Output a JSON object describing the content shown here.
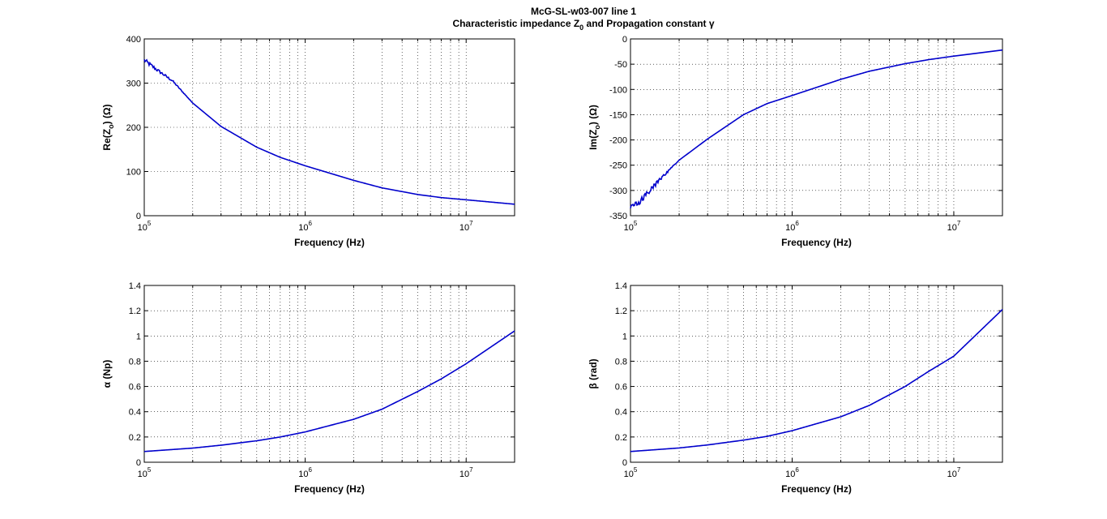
{
  "figure": {
    "title_line1": "McG-SL-w03-007 line 1",
    "title_line2_prefix": "Characteristic impedance Z",
    "title_line2_sub": "0",
    "title_line2_suffix": " and Propagation constant γ"
  },
  "colors": {
    "series": "#0000cc",
    "axes": "#000000",
    "background": "#ffffff"
  },
  "chart_data": [
    {
      "type": "line",
      "title": "",
      "xlabel": "Frequency (Hz)",
      "ylabel": {
        "prefix": "Re(Z",
        "sub": "o",
        "suffix": ") (Ω)"
      },
      "xscale": "log",
      "xlim": [
        100000,
        20000000
      ],
      "ylim": [
        0,
        400
      ],
      "yticks": [
        0,
        100,
        200,
        300,
        400
      ],
      "ytick_labels": [
        "0",
        "100",
        "200",
        "300",
        "400"
      ],
      "xticks": [
        {
          "base": "10",
          "exp": "5",
          "value": 100000
        },
        {
          "base": "10",
          "exp": "6",
          "value": 1000000
        },
        {
          "base": "10",
          "exp": "7",
          "value": 10000000
        }
      ],
      "grid": true,
      "noisy_until": 200000,
      "noise_amplitude": 5,
      "series": [
        {
          "x": [
            100000,
            120000,
            150000,
            200000,
            300000,
            500000,
            700000,
            1000000,
            2000000,
            3000000,
            5000000,
            7000000,
            10000000,
            20000000
          ],
          "y": [
            352,
            330,
            305,
            255,
            202,
            155,
            132,
            113,
            80,
            63,
            48,
            41,
            36,
            26
          ]
        }
      ]
    },
    {
      "type": "line",
      "title": "",
      "xlabel": "Frequency (Hz)",
      "ylabel": {
        "prefix": "Im(Z",
        "sub": "o",
        "suffix": ") (Ω)"
      },
      "xscale": "log",
      "xlim": [
        100000,
        20000000
      ],
      "ylim": [
        -350,
        0
      ],
      "yticks": [
        -350,
        -300,
        -250,
        -200,
        -150,
        -100,
        -50,
        0
      ],
      "ytick_labels": [
        "-350",
        "-300",
        "-250",
        "-200",
        "-150",
        "-100",
        "-50",
        "0"
      ],
      "xticks": [
        {
          "base": "10",
          "exp": "5",
          "value": 100000
        },
        {
          "base": "10",
          "exp": "6",
          "value": 1000000
        },
        {
          "base": "10",
          "exp": "7",
          "value": 10000000
        }
      ],
      "grid": true,
      "noisy_until": 200000,
      "noise_amplitude": 8,
      "series": [
        {
          "x": [
            100000,
            120000,
            150000,
            200000,
            300000,
            500000,
            700000,
            1000000,
            2000000,
            3000000,
            5000000,
            7000000,
            10000000,
            20000000
          ],
          "y": [
            -335,
            -315,
            -280,
            -240,
            -198,
            -150,
            -128,
            -112,
            -80,
            -64,
            -49,
            -41,
            -34,
            -22
          ]
        }
      ]
    },
    {
      "type": "line",
      "title": "",
      "xlabel": "Frequency (Hz)",
      "ylabel": {
        "prefix": "α (Np)",
        "sub": "",
        "suffix": ""
      },
      "xscale": "log",
      "xlim": [
        100000,
        20000000
      ],
      "ylim": [
        0,
        1.4
      ],
      "yticks": [
        0,
        0.2,
        0.4,
        0.6,
        0.8,
        1,
        1.2,
        1.4
      ],
      "ytick_labels": [
        "0",
        "0.2",
        "0.4",
        "0.6",
        "0.8",
        "1",
        "1.2",
        "1.4"
      ],
      "xticks": [
        {
          "base": "10",
          "exp": "5",
          "value": 100000
        },
        {
          "base": "10",
          "exp": "6",
          "value": 1000000
        },
        {
          "base": "10",
          "exp": "7",
          "value": 10000000
        }
      ],
      "grid": true,
      "noisy_until": 0,
      "noise_amplitude": 0,
      "series": [
        {
          "x": [
            100000,
            200000,
            300000,
            500000,
            700000,
            1000000,
            2000000,
            3000000,
            5000000,
            7000000,
            10000000,
            20000000
          ],
          "y": [
            0.085,
            0.112,
            0.135,
            0.17,
            0.2,
            0.24,
            0.34,
            0.42,
            0.56,
            0.66,
            0.78,
            1.04
          ]
        }
      ]
    },
    {
      "type": "line",
      "title": "",
      "xlabel": "Frequency (Hz)",
      "ylabel": {
        "prefix": "β (rad)",
        "sub": "",
        "suffix": ""
      },
      "xscale": "log",
      "xlim": [
        100000,
        20000000
      ],
      "ylim": [
        0,
        1.4
      ],
      "yticks": [
        0,
        0.2,
        0.4,
        0.6,
        0.8,
        1,
        1.2,
        1.4
      ],
      "ytick_labels": [
        "0",
        "0.2",
        "0.4",
        "0.6",
        "0.8",
        "1",
        "1.2",
        "1.4"
      ],
      "xticks": [
        {
          "base": "10",
          "exp": "5",
          "value": 100000
        },
        {
          "base": "10",
          "exp": "6",
          "value": 1000000
        },
        {
          "base": "10",
          "exp": "7",
          "value": 10000000
        }
      ],
      "grid": true,
      "noisy_until": 0,
      "noise_amplitude": 0,
      "series": [
        {
          "x": [
            100000,
            200000,
            300000,
            500000,
            700000,
            1000000,
            2000000,
            3000000,
            5000000,
            7000000,
            10000000,
            20000000
          ],
          "y": [
            0.085,
            0.113,
            0.137,
            0.175,
            0.205,
            0.25,
            0.36,
            0.45,
            0.6,
            0.72,
            0.84,
            1.21
          ]
        }
      ]
    }
  ]
}
